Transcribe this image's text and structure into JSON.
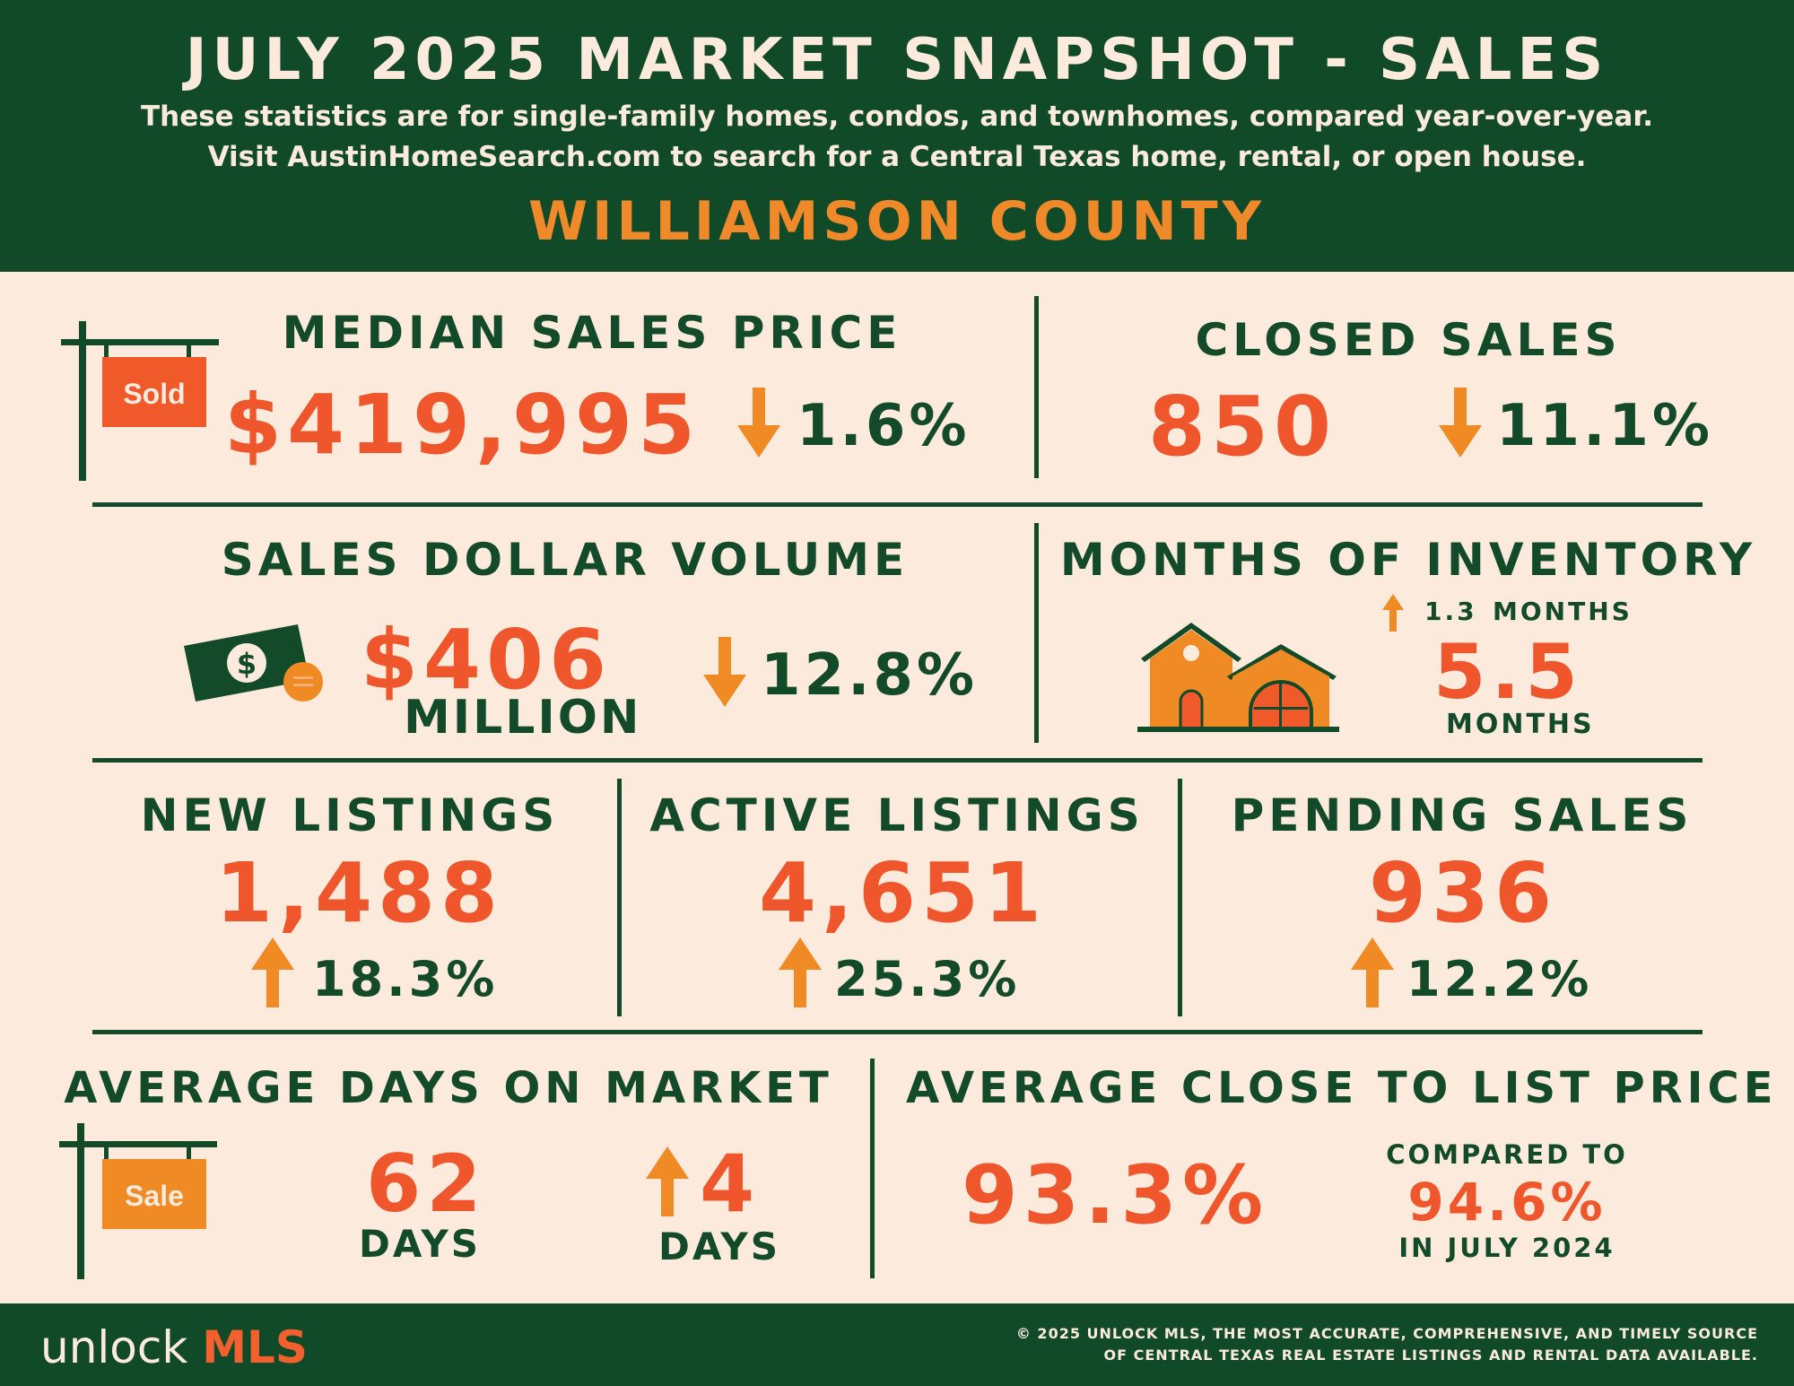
{
  "header": {
    "title": "JULY 2025 MARKET SNAPSHOT - SALES",
    "subtitle_line1": "These statistics are for single-family homes, condos, and townhomes, compared year-over-year.",
    "subtitle_line2": "Visit AustinHomeSearch.com to search for a Central Texas home, rental, or open house.",
    "county": "WILLIAMSON COUNTY"
  },
  "median_sales_price": {
    "label": "MEDIAN SALES PRICE",
    "value": "$419,995",
    "change": "1.6%",
    "direction": "down",
    "sign_text": "Sold"
  },
  "closed_sales": {
    "label": "CLOSED SALES",
    "value": "850",
    "change": "11.1%",
    "direction": "down"
  },
  "sales_dollar_volume": {
    "label": "SALES DOLLAR VOLUME",
    "value": "$406",
    "unit": "MILLION",
    "change": "12.8%",
    "direction": "down",
    "icon": "money-icon"
  },
  "months_of_inventory": {
    "label": "MONTHS OF INVENTORY",
    "change": "1.3",
    "change_unit": "MONTHS",
    "direction": "up",
    "value": "5.5",
    "unit": "MONTHS",
    "icon": "house-icon"
  },
  "new_listings": {
    "label": "NEW LISTINGS",
    "value": "1,488",
    "change": "18.3%",
    "direction": "up"
  },
  "active_listings": {
    "label": "ACTIVE LISTINGS",
    "value": "4,651",
    "change": "25.3%",
    "direction": "up"
  },
  "pending_sales": {
    "label": "PENDING SALES",
    "value": "936",
    "change": "12.2%",
    "direction": "up"
  },
  "avg_days_on_market": {
    "label": "AVERAGE DAYS ON MARKET",
    "value": "62",
    "unit": "DAYS",
    "change": "4",
    "change_unit": "DAYS",
    "direction": "up",
    "sign_text": "Sale"
  },
  "avg_close_to_list": {
    "label": "AVERAGE CLOSE TO LIST PRICE",
    "value": "93.3%",
    "compared_label": "COMPARED TO",
    "compared_value": "94.6%",
    "compared_period": "IN JULY 2024"
  },
  "footer": {
    "logo_word": "unlock",
    "logo_brand": "MLS",
    "copyright_line1": "© 2025 UNLOCK MLS, THE MOST ACCURATE, COMPREHENSIVE, AND TIMELY SOURCE",
    "copyright_line2": "OF CENTRAL TEXAS REAL ESTATE LISTINGS AND RENTAL DATA AVAILABLE."
  },
  "colors": {
    "dark_green": "#134a29",
    "cream": "#fcebdd",
    "red_orange": "#f0562b",
    "amber": "#f08a24"
  }
}
